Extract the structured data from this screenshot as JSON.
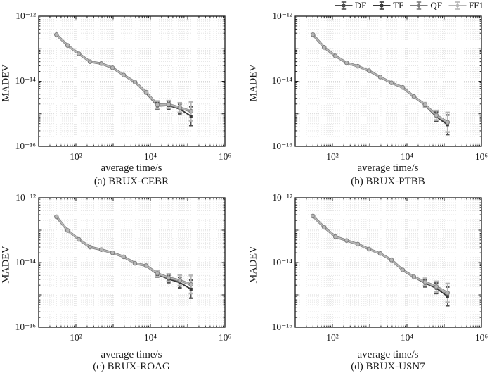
{
  "style": {
    "axis_color": "#1a1a1a",
    "grid_minor_color": "#e0e0e0",
    "grid_major_color": "#cbcbcb",
    "background": "#ffffff"
  },
  "axes": {
    "x_ticks": [
      "10²",
      "10⁴",
      "10⁶"
    ],
    "y_ticks": [
      "10⁻¹²",
      "10⁻¹⁴",
      "10⁻¹⁶"
    ]
  },
  "legend": {
    "position": "top-right",
    "items": [
      {
        "label": "DF",
        "color": "#4d4d4d",
        "marker": "square"
      },
      {
        "label": "TF",
        "color": "#383838",
        "marker": "square"
      },
      {
        "label": "QF",
        "color": "#7d7d7d",
        "marker": "circle"
      },
      {
        "label": "FF1",
        "color": "#b6b6b6",
        "marker": "circle"
      }
    ]
  },
  "chart_data": [
    {
      "type": "line",
      "title": "(a) BRUX-CEBR",
      "xlabel": "average time/s",
      "ylabel": "MADEV",
      "xscale": "log",
      "yscale": "log",
      "grid": "on",
      "xlim": [
        10,
        1000000
      ],
      "ylim": [
        1e-16,
        1e-12
      ],
      "x": [
        30,
        60,
        120,
        240,
        480,
        960,
        1920,
        3840,
        7680,
        15360,
        30720,
        61440,
        122880
      ],
      "series": [
        {
          "name": "DF",
          "color": "#4d4d4d",
          "marker": "square",
          "values": [
            2.7e-13,
            1.26e-13,
            7e-14,
            4e-14,
            3.5e-14,
            2.6e-14,
            1.55e-14,
            9.3e-15,
            4.3e-15,
            1.75e-15,
            1.8e-15,
            1.4e-15,
            8.5e-16
          ]
        },
        {
          "name": "TF",
          "color": "#383838",
          "marker": "square",
          "values": [
            2.7e-13,
            1.26e-13,
            7e-14,
            4e-14,
            3.5e-14,
            2.6e-14,
            1.55e-14,
            9.3e-15,
            4.3e-15,
            1.75e-15,
            1.8e-15,
            1.4e-15,
            8.5e-16
          ]
        },
        {
          "name": "QF",
          "color": "#7d7d7d",
          "marker": "circle",
          "values": [
            2.7e-13,
            1.26e-13,
            7e-14,
            4e-14,
            3.5e-14,
            2.6e-14,
            1.55e-14,
            9.5e-15,
            4.6e-15,
            1.9e-15,
            1.95e-15,
            1.55e-15,
            1.2e-15
          ]
        },
        {
          "name": "FF1",
          "color": "#b6b6b6",
          "marker": "circle",
          "values": [
            2.7e-13,
            1.26e-13,
            7e-14,
            4e-14,
            3.5e-14,
            2.6e-14,
            1.55e-14,
            9.5e-15,
            4.6e-15,
            1.9e-15,
            1.95e-15,
            1.55e-15,
            1.2e-15
          ]
        }
      ],
      "err_factors": [
        1,
        1,
        1,
        1,
        1,
        1,
        1,
        1,
        1,
        1.3,
        1.3,
        1.4,
        1.95
      ]
    },
    {
      "type": "line",
      "title": "(b) BRUX-PTBB",
      "xlabel": "average time/s",
      "ylabel": "MADEV",
      "xscale": "log",
      "yscale": "log",
      "grid": "on",
      "xlim": [
        10,
        1000000
      ],
      "ylim": [
        1e-16,
        1e-12
      ],
      "x": [
        30,
        60,
        120,
        240,
        480,
        960,
        1920,
        3840,
        7680,
        15360,
        30720,
        61440,
        122880
      ],
      "series": [
        {
          "name": "DF",
          "color": "#4d4d4d",
          "marker": "square",
          "values": [
            2.7e-13,
            1.1e-13,
            6e-14,
            3.7e-14,
            2.9e-14,
            2.1e-14,
            1.35e-14,
            9e-15,
            6.5e-15,
            3.3e-15,
            1.8e-15,
            8.2e-16,
            4.6e-16
          ]
        },
        {
          "name": "TF",
          "color": "#383838",
          "marker": "square",
          "values": [
            2.7e-13,
            1.1e-13,
            6e-14,
            3.7e-14,
            2.9e-14,
            2.1e-14,
            1.35e-14,
            9e-15,
            6.5e-15,
            3.3e-15,
            1.8e-15,
            8.2e-16,
            4.6e-16
          ]
        },
        {
          "name": "QF",
          "color": "#7d7d7d",
          "marker": "circle",
          "values": [
            2.7e-13,
            1.1e-13,
            6e-14,
            3.7e-14,
            2.9e-14,
            2.1e-14,
            1.35e-14,
            9e-15,
            6.5e-15,
            3.4e-15,
            1.9e-15,
            9e-16,
            5.5e-16
          ]
        },
        {
          "name": "FF1",
          "color": "#b6b6b6",
          "marker": "circle",
          "values": [
            2.7e-13,
            1.1e-13,
            6e-14,
            3.7e-14,
            2.9e-14,
            2.1e-14,
            1.35e-14,
            9e-15,
            6.5e-15,
            3.4e-15,
            1.9e-15,
            9e-16,
            5.5e-16
          ]
        }
      ],
      "err_factors": [
        1,
        1,
        1,
        1,
        1,
        1,
        1,
        1,
        1,
        1,
        1.15,
        1.4,
        2.0
      ]
    },
    {
      "type": "line",
      "title": "(c) BRUX-ROAG",
      "xlabel": "average time/s",
      "ylabel": "MADEV",
      "xscale": "log",
      "yscale": "log",
      "grid": "on",
      "xlim": [
        10,
        1000000
      ],
      "ylim": [
        1e-16,
        1e-12
      ],
      "x": [
        30,
        60,
        120,
        240,
        480,
        960,
        1920,
        3840,
        7680,
        15360,
        30720,
        61440,
        122880
      ],
      "series": [
        {
          "name": "DF",
          "color": "#4d4d4d",
          "marker": "square",
          "values": [
            2.6e-13,
            9.8e-14,
            5.2e-14,
            3e-14,
            2.5e-14,
            2e-14,
            1.5e-14,
            9.3e-15,
            7.8e-15,
            4.3e-15,
            3.1e-15,
            2.4e-15,
            1.5e-15
          ]
        },
        {
          "name": "TF",
          "color": "#383838",
          "marker": "square",
          "values": [
            2.6e-13,
            9.8e-14,
            5.2e-14,
            3e-14,
            2.5e-14,
            2e-14,
            1.5e-14,
            9.3e-15,
            7.8e-15,
            4.3e-15,
            3.1e-15,
            2.4e-15,
            1.5e-15
          ]
        },
        {
          "name": "QF",
          "color": "#7d7d7d",
          "marker": "circle",
          "values": [
            2.6e-13,
            9.8e-14,
            5.2e-14,
            3e-14,
            2.5e-14,
            2e-14,
            1.5e-14,
            9.5e-15,
            8e-15,
            4.6e-15,
            3.4e-15,
            2.8e-15,
            2.1e-15
          ]
        },
        {
          "name": "FF1",
          "color": "#b6b6b6",
          "marker": "circle",
          "values": [
            2.6e-13,
            9.8e-14,
            5.2e-14,
            3e-14,
            2.5e-14,
            2e-14,
            1.5e-14,
            9.5e-15,
            8e-15,
            4.6e-15,
            3.4e-15,
            2.8e-15,
            2.1e-15
          ]
        }
      ],
      "err_factors": [
        1,
        1,
        1,
        1,
        1,
        1,
        1,
        1,
        1,
        1.2,
        1.3,
        1.45,
        1.9
      ]
    },
    {
      "type": "line",
      "title": "(d) BRUX-USN7",
      "xlabel": "average time/s",
      "ylabel": "MADEV",
      "xscale": "log",
      "yscale": "log",
      "grid": "on",
      "xlim": [
        10,
        1000000
      ],
      "ylim": [
        1e-16,
        1e-12
      ],
      "x": [
        30,
        60,
        120,
        240,
        480,
        960,
        1920,
        3840,
        7680,
        15360,
        30720,
        61440,
        122880
      ],
      "series": [
        {
          "name": "DF",
          "color": "#4d4d4d",
          "marker": "square",
          "values": [
            2.73e-13,
            1.23e-13,
            6.3e-14,
            4.8e-14,
            3.7e-14,
            2.6e-14,
            1.9e-14,
            1.18e-14,
            5.7e-15,
            3.5e-15,
            2.3e-15,
            1.6e-15,
            9e-16
          ]
        },
        {
          "name": "TF",
          "color": "#383838",
          "marker": "square",
          "values": [
            2.73e-13,
            1.23e-13,
            6.3e-14,
            4.8e-14,
            3.7e-14,
            2.6e-14,
            1.9e-14,
            1.18e-14,
            5.7e-15,
            3.5e-15,
            2.3e-15,
            1.6e-15,
            9e-16
          ]
        },
        {
          "name": "QF",
          "color": "#7d7d7d",
          "marker": "circle",
          "values": [
            2.73e-13,
            1.23e-13,
            6.3e-14,
            4.8e-14,
            3.7e-14,
            2.6e-14,
            1.9e-14,
            1.2e-14,
            5.9e-15,
            3.6e-15,
            2.5e-15,
            1.8e-15,
            1.15e-15
          ]
        },
        {
          "name": "FF1",
          "color": "#b6b6b6",
          "marker": "circle",
          "values": [
            2.73e-13,
            1.23e-13,
            6.3e-14,
            4.8e-14,
            3.7e-14,
            2.6e-14,
            1.9e-14,
            1.2e-14,
            5.9e-15,
            3.6e-15,
            2.5e-15,
            1.8e-15,
            1.15e-15
          ]
        }
      ],
      "err_factors": [
        1,
        1,
        1,
        1,
        1,
        1,
        1,
        1,
        1,
        1,
        1.3,
        1.45,
        1.95
      ]
    }
  ]
}
